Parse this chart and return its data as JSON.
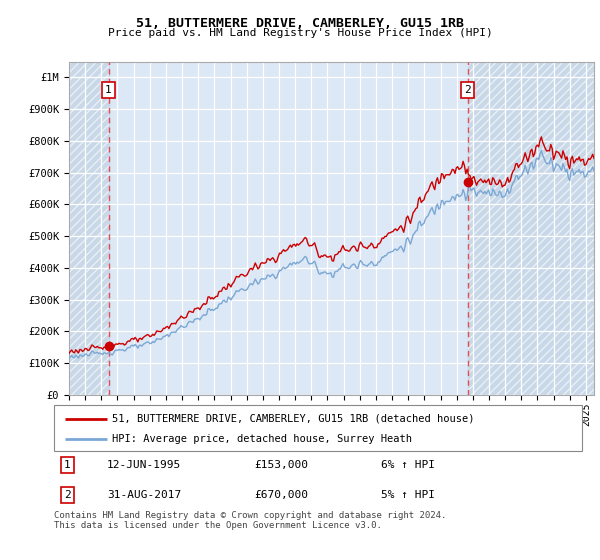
{
  "title": "51, BUTTERMERE DRIVE, CAMBERLEY, GU15 1RB",
  "subtitle": "Price paid vs. HM Land Registry's House Price Index (HPI)",
  "legend_line1": "51, BUTTERMERE DRIVE, CAMBERLEY, GU15 1RB (detached house)",
  "legend_line2": "HPI: Average price, detached house, Surrey Heath",
  "footnote": "Contains HM Land Registry data © Crown copyright and database right 2024.\nThis data is licensed under the Open Government Licence v3.0.",
  "purchase1_date": "12-JUN-1995",
  "purchase1_price": 153000,
  "purchase1_label": "6% ↑ HPI",
  "purchase1_year": 1995.45,
  "purchase2_date": "31-AUG-2017",
  "purchase2_price": 670000,
  "purchase2_label": "5% ↑ HPI",
  "purchase2_year": 2017.67,
  "hpi_color": "#7ba7d4",
  "property_color": "#cc0000",
  "vline_color": "#e05050",
  "background_plot": "#dce8f5",
  "background_hatch": "#c8d8e8",
  "ylim": [
    0,
    1050000
  ],
  "yticks": [
    0,
    100000,
    200000,
    300000,
    400000,
    500000,
    600000,
    700000,
    800000,
    900000,
    1000000
  ],
  "ytick_labels": [
    "£0",
    "£100K",
    "£200K",
    "£300K",
    "£400K",
    "£500K",
    "£600K",
    "£700K",
    "£800K",
    "£900K",
    "£1M"
  ],
  "xmin": 1993.0,
  "xmax": 2025.5
}
